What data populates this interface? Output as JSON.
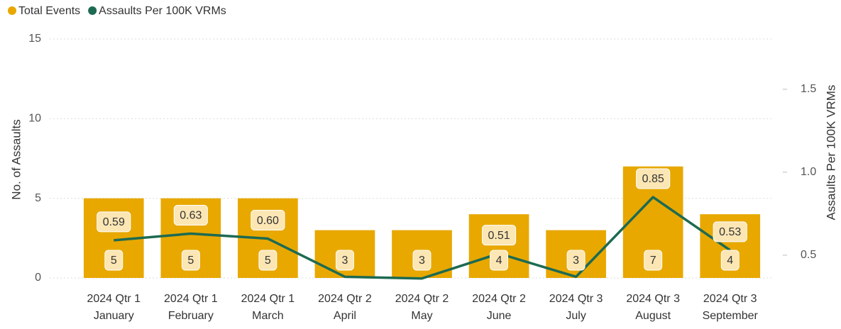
{
  "chart_data": {
    "type": "bar-line",
    "categories": [
      [
        "2024 Qtr 1",
        "January"
      ],
      [
        "2024 Qtr 1",
        "February"
      ],
      [
        "2024 Qtr 1",
        "March"
      ],
      [
        "2024 Qtr 2",
        "April"
      ],
      [
        "2024 Qtr 2",
        "May"
      ],
      [
        "2024 Qtr 2",
        "June"
      ],
      [
        "2024 Qtr 3",
        "July"
      ],
      [
        "2024 Qtr 3",
        "August"
      ],
      [
        "2024 Qtr 3",
        "September"
      ]
    ],
    "series": [
      {
        "name": "Total Events",
        "color": "#e8a800",
        "type": "bar",
        "values": [
          5,
          5,
          5,
          3,
          3,
          4,
          3,
          7,
          4
        ]
      },
      {
        "name": "Assaults Per 100K VRMs",
        "color": "#1d6a52",
        "type": "line",
        "axis": "y2",
        "values": [
          0.59,
          0.63,
          0.6,
          0.37,
          0.36,
          0.51,
          0.37,
          0.85,
          0.53
        ],
        "value_labels": [
          "0.59",
          "0.63",
          "0.60",
          null,
          null,
          "0.51",
          null,
          "0.85",
          "0.53"
        ]
      }
    ],
    "ylabel": "No. of Assaults",
    "y2label": "Assaults Per 100K VRMs",
    "ylim": [
      0,
      15
    ],
    "yticks": [
      0,
      5,
      10,
      15
    ],
    "y2lim": [
      0.363,
      1.803
    ],
    "y2ticks": [
      0.5,
      {
        "value": 1,
        "label": "1.0"
      },
      1.5
    ],
    "grid": true,
    "legend": "top-left"
  }
}
